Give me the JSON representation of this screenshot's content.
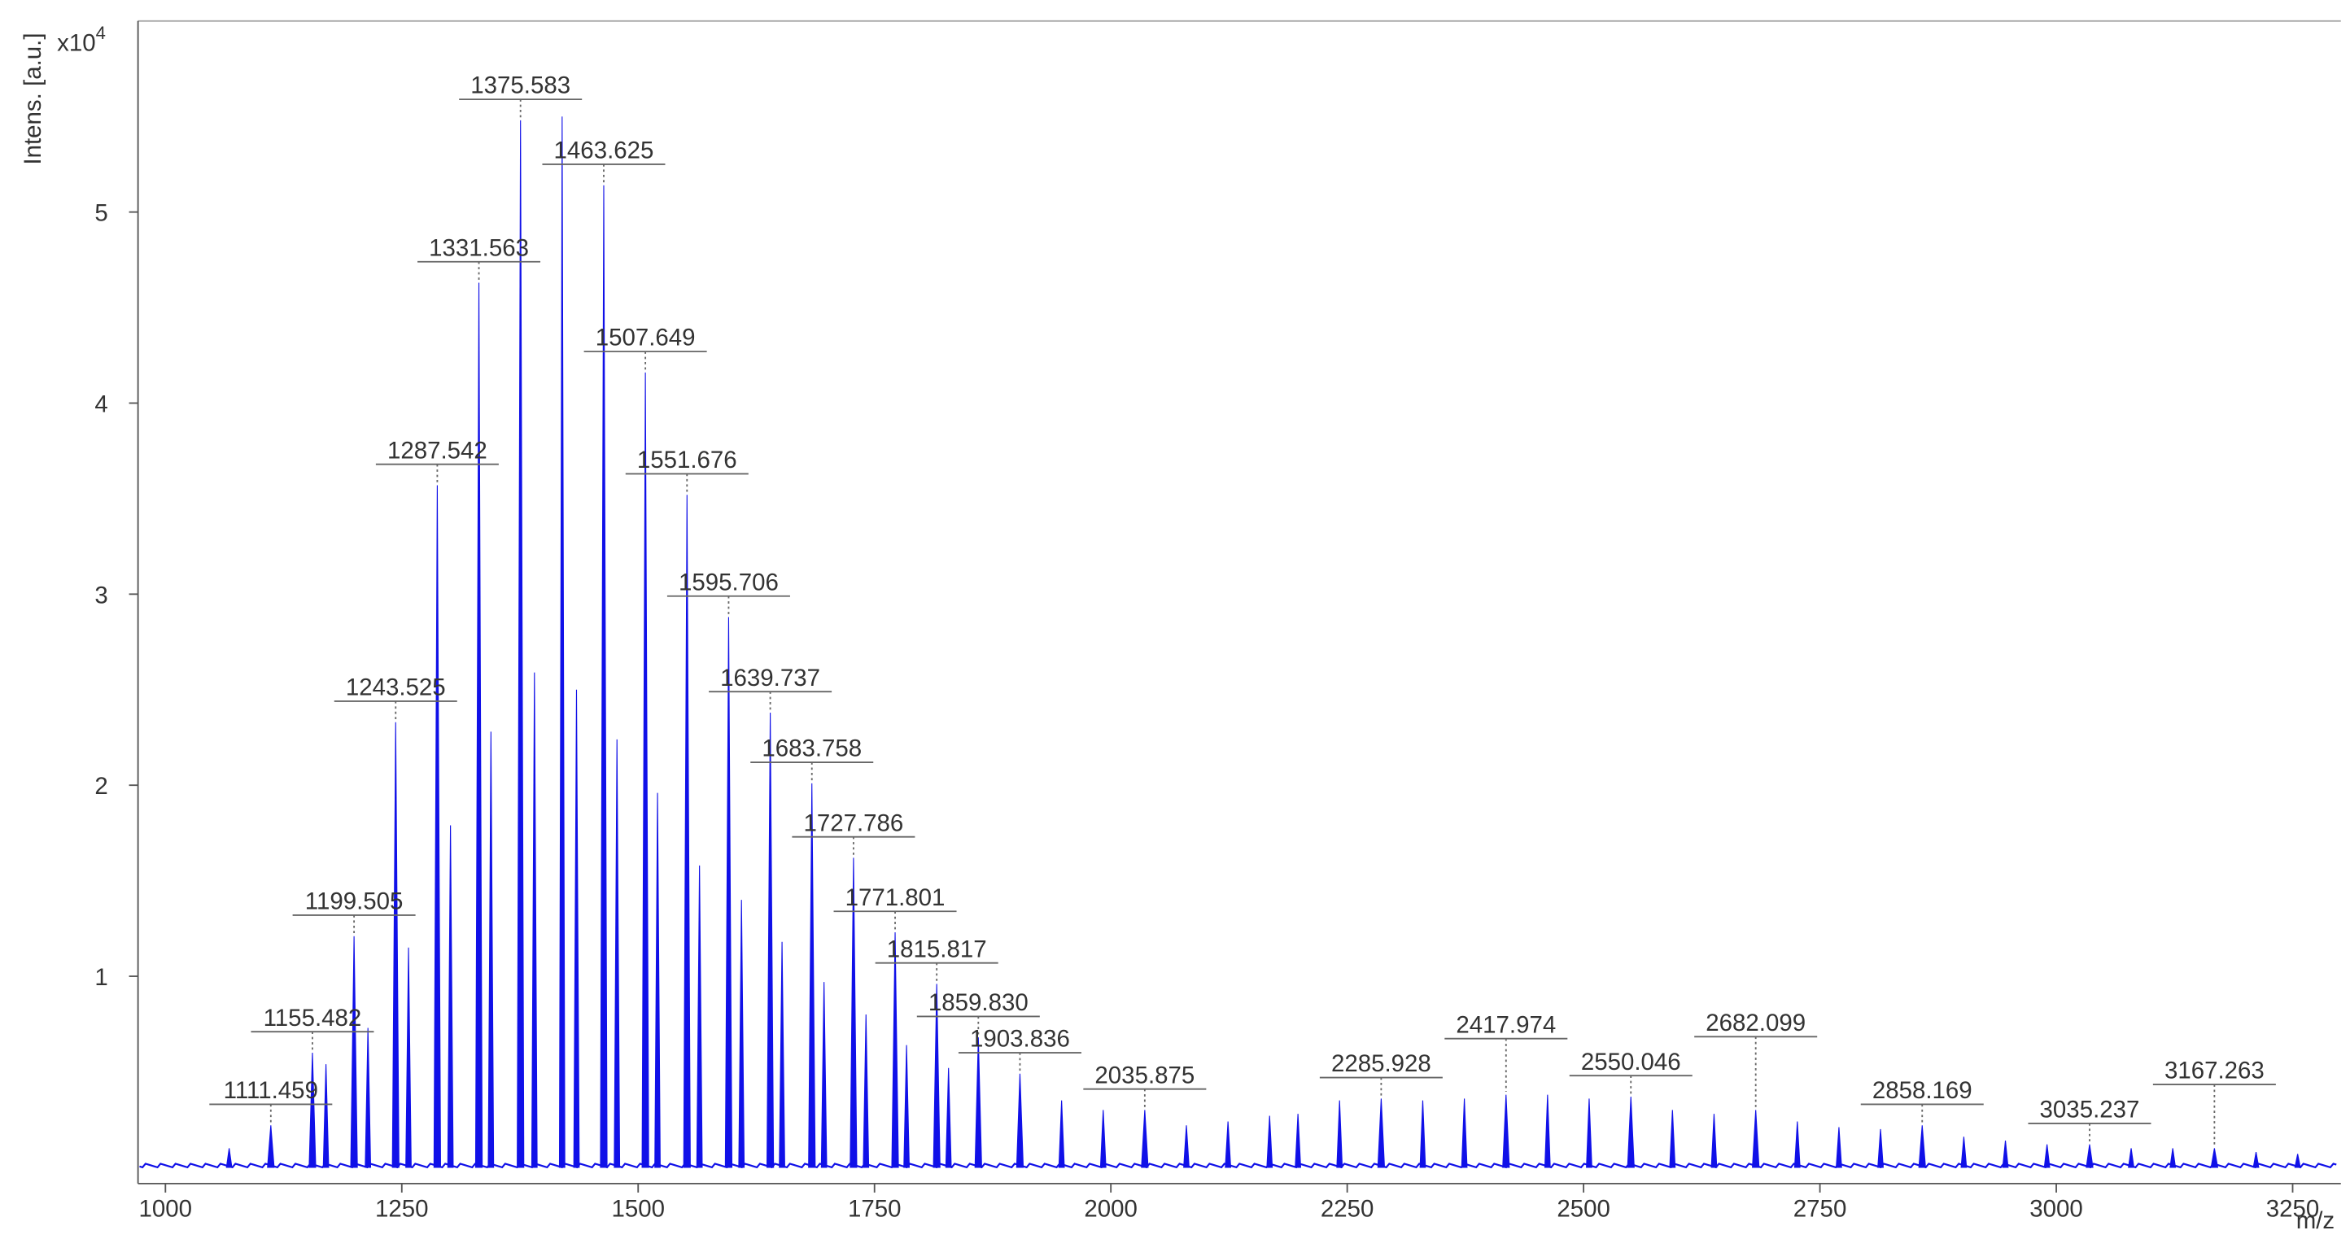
{
  "chart_data": {
    "type": "spectrum",
    "y_label": "Intens. [a.u.]",
    "y_multiplier": {
      "base": "x10",
      "exponent": "4"
    },
    "x_label": "m/z",
    "color": "#1010e8",
    "label_color": "#333333",
    "xlim": [
      971,
      3301
    ],
    "ylim": [
      -0.085,
      6
    ],
    "xticks": [
      1000,
      1250,
      1500,
      1750,
      2000,
      2250,
      2500,
      2750,
      3000,
      3250
    ],
    "yticks": [
      1,
      2,
      3,
      4,
      5
    ],
    "peaks": {
      "x": [
        1111.459,
        1155.482,
        1199.505,
        1243.525,
        1287.542,
        1331.563,
        1375.583,
        1463.625,
        1507.649,
        1551.676,
        1595.706,
        1639.737,
        1683.758,
        1727.786,
        1771.801,
        1815.817,
        1859.83,
        1903.836,
        2035.875,
        2285.928,
        2417.974,
        2550.046,
        2682.099,
        2858.169,
        3035.237,
        3167.263
      ],
      "peak_labels": [
        "1111.459",
        "1155.482",
        "1199.505",
        "1243.525",
        "1287.542",
        "1331.563",
        "1375.583",
        "1463.625",
        "1507.649",
        "1551.676",
        "1595.706",
        "1639.737",
        "1683.758",
        "1727.786",
        "1771.801",
        "1815.817",
        "1859.830",
        "1903.836",
        "2035.875",
        "2285.928",
        "2417.974",
        "2550.046",
        "2682.099",
        "2858.169",
        "3035.237",
        "3167.263"
      ],
      "values": [
        0.22,
        0.6,
        1.21,
        2.33,
        3.57,
        4.63,
        5.48,
        5.14,
        4.16,
        3.52,
        2.88,
        2.38,
        2.01,
        1.62,
        1.23,
        0.96,
        0.68,
        0.49,
        0.3,
        0.36,
        0.38,
        0.37,
        0.3,
        0.22,
        0.12,
        0.1
      ]
    },
    "other_peaks": {
      "x": [
        1067.4,
        1169.8,
        1214.2,
        1257.1,
        1301.5,
        1344.3,
        1390.3,
        1419.6,
        1434.8,
        1477.6,
        1520.5,
        1564.9,
        1609.3,
        1652.2,
        1696.6,
        1741.0,
        1783.9,
        1828.3,
        1947.9,
        1991.9,
        2079.9,
        2123.9,
        2167.9,
        2197.9,
        2241.9,
        2329.9,
        2373.9,
        2461.9,
        2505.9,
        2594.0,
        2638.0,
        2726.1,
        2770.1,
        2814.1,
        2902.2,
        2946.2,
        2990.2,
        3079.2,
        3123.2,
        3211.3,
        3255.3
      ],
      "values": [
        0.1,
        0.54,
        0.73,
        1.15,
        1.79,
        2.28,
        2.59,
        5.5,
        2.5,
        2.24,
        1.96,
        1.58,
        1.4,
        1.18,
        0.97,
        0.8,
        0.64,
        0.52,
        0.35,
        0.3,
        0.22,
        0.24,
        0.27,
        0.28,
        0.35,
        0.35,
        0.36,
        0.38,
        0.36,
        0.3,
        0.28,
        0.24,
        0.21,
        0.2,
        0.16,
        0.14,
        0.12,
        0.1,
        0.1,
        0.08,
        0.07
      ]
    }
  }
}
